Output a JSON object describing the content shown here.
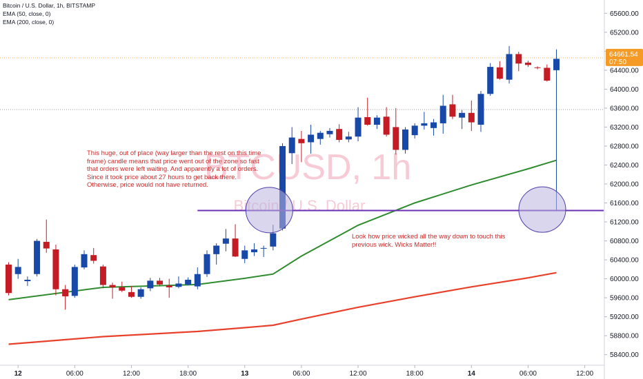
{
  "legend": {
    "symbol": "Bitcoin / U.S. Dollar, 1h, BITSTAMP",
    "ema50": "EMA (50, close, 0)",
    "ema200": "EMA (200, close, 0)"
  },
  "watermark": {
    "ticker": "BTCUSD, 1h",
    "name": "Bitcoin / U.S. Dollar"
  },
  "annotations": [
    "This huge, out of place (way larger than the rest on this time frame) candle means that price went out of the zone so fast that orders were left waiting. And apparently a lot of orders. Since it took price about 27 hours to get back there. Otherwise, price would not have returned.",
    "Look how price wicked all the way down to touch this previous wick. Wicks Matter!!"
  ],
  "price_badge": {
    "price": "64661.54",
    "countdown": "07:50"
  },
  "colors": {
    "up": "#1848a8",
    "down": "#c41c24",
    "ema50": "#2e8b2e",
    "ema200": "#e8402a",
    "hline": "#6a30b4",
    "ellipse_fill": "#b9b4e0",
    "ellipse_stroke": "#4a3ea8",
    "badge": "#f59b25",
    "axis_text": "#131722"
  },
  "chart_data": {
    "type": "candlestick",
    "title": "Bitcoin / U.S. Dollar, 1h, BITSTAMP",
    "ylim": [
      58000,
      65900
    ],
    "y_ticks": [
      58400,
      58800,
      59200,
      59600,
      60000,
      60400,
      60800,
      61200,
      61600,
      62000,
      62400,
      62800,
      63200,
      63600,
      64000,
      64400,
      64800,
      65200,
      65600
    ],
    "y_tick_labels": [
      "58400.00",
      "58800.00",
      "59200.00",
      "59600.00",
      "60000.00",
      "60400.00",
      "60800.00",
      "61200.00",
      "61600.00",
      "62000.00",
      "62400.00",
      "62800.00",
      "63200.00",
      "63600.00",
      "64000.00",
      "64400.00",
      "64800.00",
      "65200.00",
      "65600.00"
    ],
    "x_ticks": [
      {
        "i": 1,
        "label": "12",
        "bold": true
      },
      {
        "i": 7,
        "label": "06:00"
      },
      {
        "i": 13,
        "label": "12:00"
      },
      {
        "i": 19,
        "label": "18:00"
      },
      {
        "i": 25,
        "label": "13",
        "bold": true
      },
      {
        "i": 31,
        "label": "06:00"
      },
      {
        "i": 37,
        "label": "12:00"
      },
      {
        "i": 43,
        "label": "18:00"
      },
      {
        "i": 49,
        "label": "14",
        "bold": true
      },
      {
        "i": 55,
        "label": "06:00"
      },
      {
        "i": 61,
        "label": "12:00"
      }
    ],
    "candles": [
      [
        60300,
        60350,
        59650,
        59700
      ],
      [
        60100,
        60420,
        60000,
        60250
      ],
      [
        59950,
        60050,
        59850,
        59980
      ],
      [
        60100,
        60840,
        60050,
        60800
      ],
      [
        60780,
        61250,
        60550,
        60640
      ],
      [
        60620,
        60720,
        59650,
        59780
      ],
      [
        59780,
        59870,
        59350,
        59630
      ],
      [
        59640,
        60300,
        59600,
        60250
      ],
      [
        60240,
        60600,
        60200,
        60520
      ],
      [
        60500,
        60650,
        60320,
        60380
      ],
      [
        60260,
        60300,
        59800,
        59870
      ],
      [
        59870,
        59920,
        59580,
        59820
      ],
      [
        59820,
        59940,
        59720,
        59750
      ],
      [
        59720,
        59850,
        59600,
        59620
      ],
      [
        59620,
        59820,
        59580,
        59780
      ],
      [
        59800,
        60020,
        59740,
        59960
      ],
      [
        59960,
        60020,
        59840,
        59880
      ],
      [
        59860,
        60000,
        59600,
        59820
      ],
      [
        59830,
        60050,
        59800,
        59900
      ],
      [
        59880,
        60030,
        59860,
        59980
      ],
      [
        59840,
        60240,
        59780,
        60100
      ],
      [
        60100,
        60600,
        60040,
        60520
      ],
      [
        60520,
        60750,
        60300,
        60700
      ],
      [
        60740,
        61050,
        60580,
        60850
      ],
      [
        60850,
        61150,
        60460,
        60470
      ],
      [
        60420,
        60700,
        60330,
        60600
      ],
      [
        60560,
        60750,
        60480,
        60620
      ],
      [
        60640,
        60700,
        60460,
        60650
      ],
      [
        60680,
        61140,
        60600,
        60960
      ],
      [
        61060,
        62860,
        61020,
        62800
      ],
      [
        62650,
        63200,
        62420,
        62980
      ],
      [
        62950,
        63120,
        62460,
        62860
      ],
      [
        62880,
        63250,
        62640,
        63040
      ],
      [
        62950,
        63120,
        62830,
        63080
      ],
      [
        63050,
        63180,
        62980,
        63120
      ],
      [
        63160,
        63260,
        62880,
        62930
      ],
      [
        62940,
        63100,
        62880,
        63000
      ],
      [
        63000,
        63620,
        62900,
        63400
      ],
      [
        63410,
        63820,
        63230,
        63250
      ],
      [
        63250,
        63450,
        63160,
        63400
      ],
      [
        63420,
        63620,
        63000,
        63040
      ],
      [
        63200,
        63600,
        62620,
        62720
      ],
      [
        62720,
        63200,
        62640,
        63150
      ],
      [
        63030,
        63280,
        62960,
        63230
      ],
      [
        63230,
        63520,
        63150,
        63280
      ],
      [
        63180,
        63370,
        63020,
        63300
      ],
      [
        63280,
        63880,
        63060,
        63650
      ],
      [
        63680,
        63880,
        63370,
        63420
      ],
      [
        63400,
        63560,
        63160,
        63500
      ],
      [
        63500,
        63760,
        63120,
        63300
      ],
      [
        63250,
        63960,
        63100,
        63900
      ],
      [
        63900,
        64550,
        63860,
        64470
      ],
      [
        64460,
        64590,
        64200,
        64220
      ],
      [
        64200,
        64910,
        64120,
        64740
      ],
      [
        64740,
        64790,
        64380,
        64540
      ],
      [
        64560,
        64600,
        64470,
        64510
      ],
      [
        64460,
        64480,
        64420,
        64450
      ],
      [
        64450,
        64520,
        64160,
        64180
      ],
      [
        64400,
        64840,
        61430,
        64640
      ]
    ],
    "ema50": [
      [
        0,
        59560
      ],
      [
        10,
        59820
      ],
      [
        20,
        59880
      ],
      [
        25,
        60010
      ],
      [
        28,
        60100
      ],
      [
        31,
        60480
      ],
      [
        37,
        61130
      ],
      [
        43,
        61600
      ],
      [
        49,
        61980
      ],
      [
        55,
        62320
      ],
      [
        58,
        62500
      ]
    ],
    "ema200": [
      [
        0,
        58620
      ],
      [
        10,
        58780
      ],
      [
        20,
        58890
      ],
      [
        25,
        58970
      ],
      [
        28,
        59020
      ],
      [
        31,
        59150
      ],
      [
        37,
        59400
      ],
      [
        43,
        59620
      ],
      [
        49,
        59830
      ],
      [
        55,
        60020
      ],
      [
        58,
        60130
      ]
    ],
    "horizontal_line": {
      "price": 61440,
      "from": 20,
      "to": 63
    },
    "dotted_price_line": 64661.54,
    "dotted_gray_line": 63570,
    "ellipses": [
      {
        "center_index": 27.6,
        "center_price": 61450
      },
      {
        "center_index": 56.5,
        "center_price": 61460
      }
    ]
  }
}
